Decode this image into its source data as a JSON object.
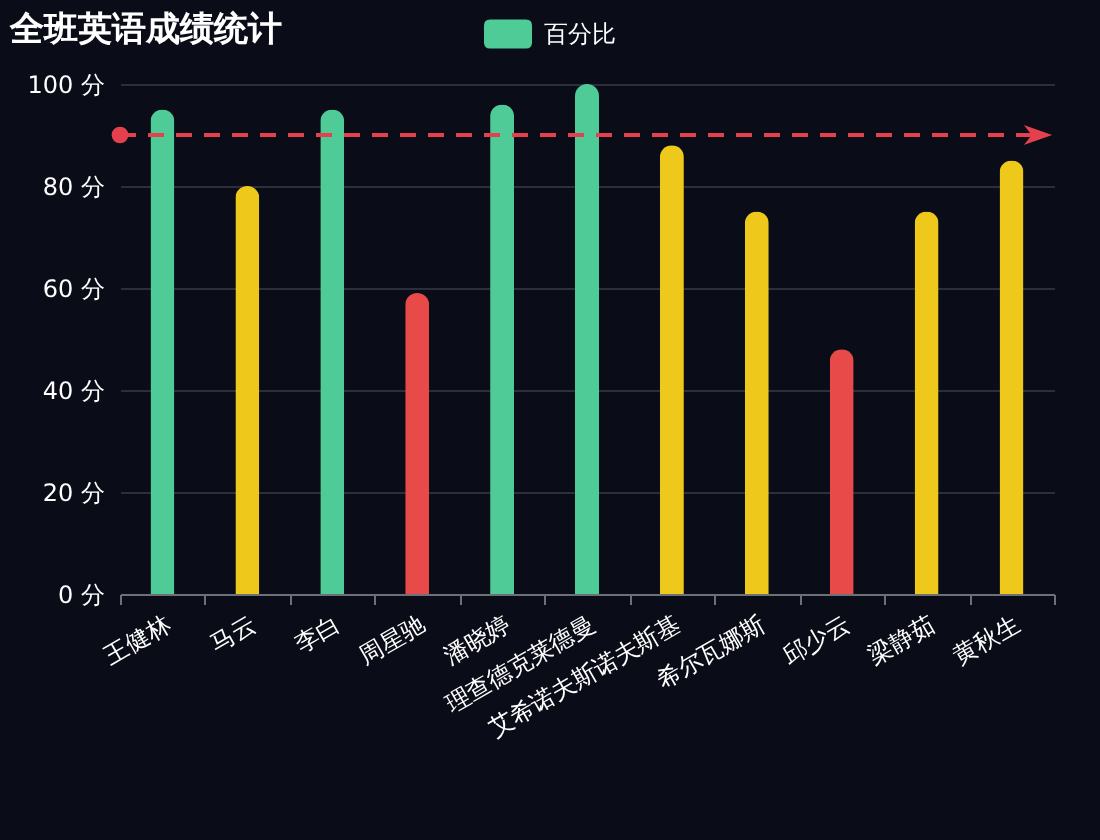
{
  "chart_data": {
    "type": "bar",
    "title": "全班英语成绩统计",
    "categories": [
      "王健林",
      "马云",
      "李白",
      "周星驰",
      "潘晓婷",
      "理查德克莱德曼",
      "艾希诺夫斯诺夫斯基",
      "希尔瓦娜斯",
      "邱少云",
      "梁静茹",
      "黄秋生"
    ],
    "series": [
      {
        "name": "百分比",
        "color": "#4ecb96",
        "values": [
          95,
          80,
          95,
          59,
          96,
          100,
          88,
          75,
          48,
          75,
          85
        ],
        "colors": [
          "#4ecb96",
          "#eec81a",
          "#4ecb96",
          "#e84a4a",
          "#4ecb96",
          "#4ecb96",
          "#eec81a",
          "#eec81a",
          "#e84a4a",
          "#eec81a",
          "#eec81a"
        ]
      }
    ],
    "ylim": [
      0,
      100
    ],
    "yticks": [
      {
        "value": 0,
        "label": "0 分"
      },
      {
        "value": 20,
        "label": "20 分"
      },
      {
        "value": 40,
        "label": "40 分"
      },
      {
        "value": 60,
        "label": "60 分"
      },
      {
        "value": 80,
        "label": "80 分"
      },
      {
        "value": 100,
        "label": "100 分"
      }
    ],
    "grid": "y",
    "legend": "top",
    "ref_lines": [
      {
        "axis": "y",
        "value": 90,
        "color": "#e5404d",
        "line_style": "dashed"
      }
    ]
  }
}
